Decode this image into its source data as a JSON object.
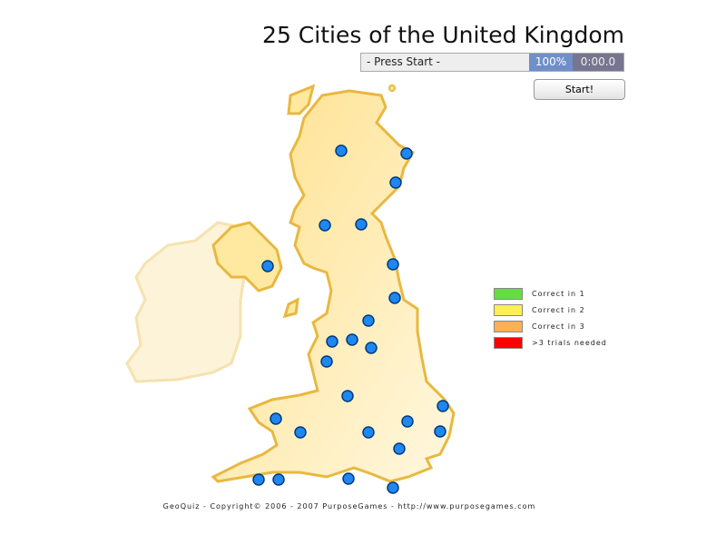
{
  "title": "25 Cities of the United Kingdom",
  "status": {
    "prompt": "- Press Start -",
    "progress_percent": "100%",
    "timer": "0:00.0"
  },
  "start_button": "Start!",
  "legend": [
    {
      "label": "Correct in 1",
      "color": "#66dd44"
    },
    {
      "label": "Correct in 2",
      "color": "#ffee55"
    },
    {
      "label": "Correct in 3",
      "color": "#ffb055"
    },
    {
      "label": ">3 trials needed",
      "color": "#ff0000"
    }
  ],
  "map": {
    "city_count": 25,
    "city_marker_color": "#1e88f0",
    "land_color": "#ffe9a0",
    "border_color": "#e8b840"
  },
  "footer": "GeoQuiz - Copyright© 2006 - 2007 PurposeGames - http://www.purposegames.com"
}
